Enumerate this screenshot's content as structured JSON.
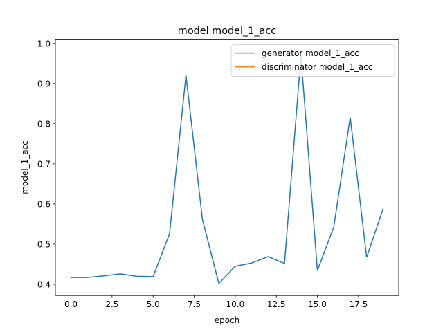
{
  "chart_data": {
    "type": "line",
    "title": "model model_1_acc",
    "xlabel": "epoch",
    "ylabel": "model_1_acc",
    "x": [
      0,
      1,
      2,
      3,
      4,
      5,
      6,
      7,
      8,
      9,
      10,
      11,
      12,
      13,
      14,
      15,
      16,
      17,
      18,
      19
    ],
    "series": [
      {
        "name": "generator model_1_acc",
        "color": "#1f77b4",
        "values": [
          0.417,
          0.417,
          0.421,
          0.426,
          0.42,
          0.419,
          0.526,
          0.921,
          0.562,
          0.402,
          0.445,
          0.453,
          0.469,
          0.452,
          0.97,
          0.434,
          0.543,
          0.816,
          0.467,
          0.588
        ]
      },
      {
        "name": "discriminator model_1_acc",
        "color": "#ff7f0e",
        "values": [
          null,
          null,
          null,
          null,
          null,
          null,
          null,
          null,
          null,
          null,
          null,
          null,
          null,
          null,
          null,
          null,
          null,
          null,
          null,
          null
        ]
      }
    ],
    "xlim": [
      -0.95,
      19.95
    ],
    "xticks": [
      {
        "value": 0,
        "label": "0.0"
      },
      2.5,
      {
        "value": 5,
        "label": "5.0"
      },
      7.5,
      {
        "value": 10,
        "label": "10.0"
      },
      12.5,
      {
        "value": 15,
        "label": "15.0"
      },
      17.5
    ],
    "ylim": [
      0.372,
      1.009
    ],
    "yticks": [
      0.4,
      0.5,
      0.6,
      0.7,
      0.8,
      0.9,
      {
        "value": 1,
        "label": "1.0"
      }
    ],
    "legend": "upper right"
  }
}
